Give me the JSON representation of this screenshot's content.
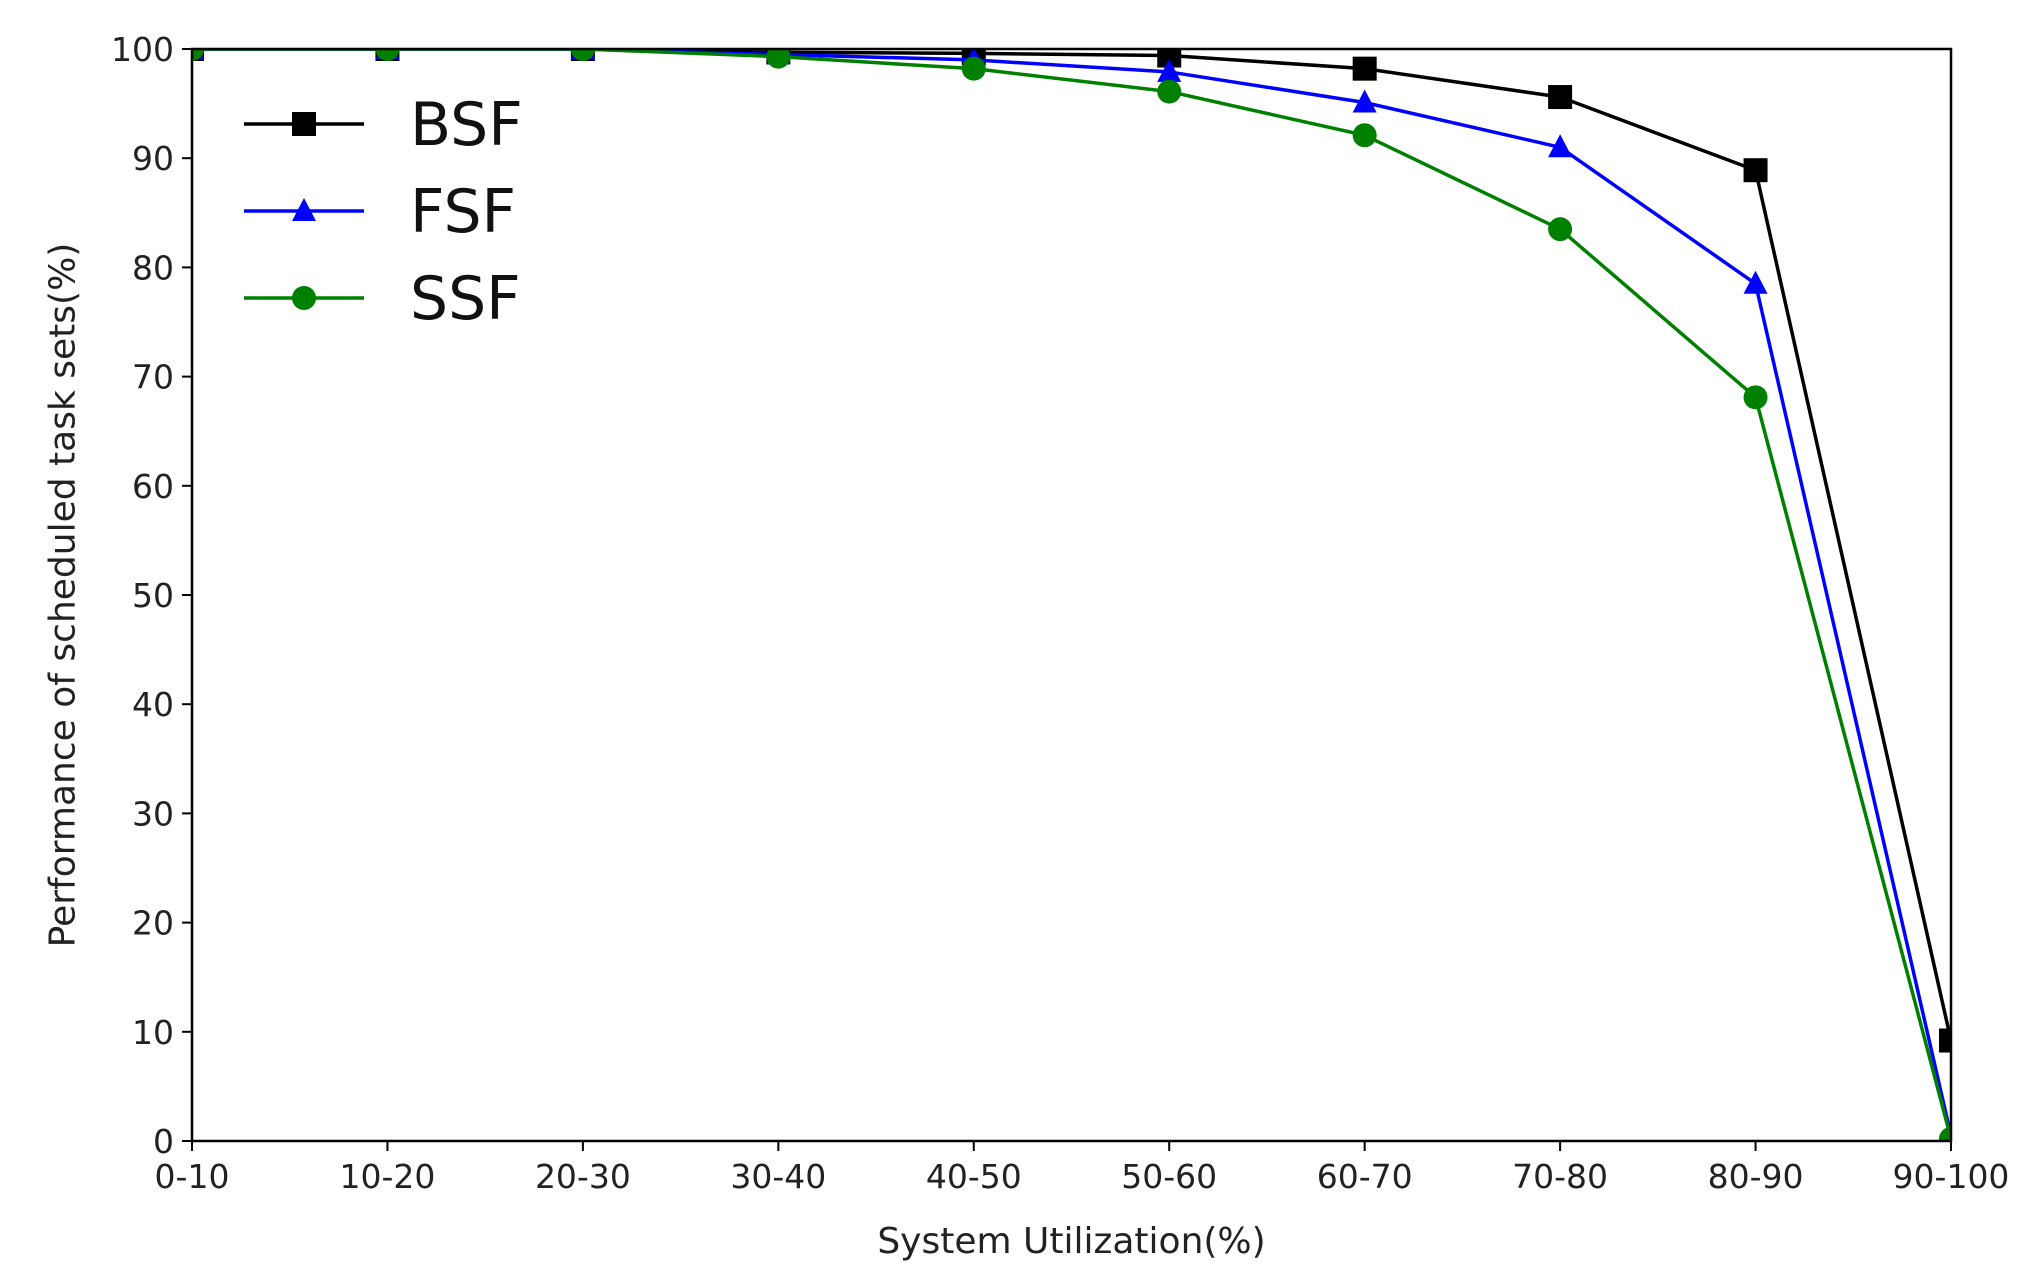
{
  "chart_data": {
    "type": "line",
    "title": "",
    "xlabel": "System Utilization(%)",
    "ylabel": "Performance of scheduled task sets(%)",
    "categories": [
      "0-10",
      "10-20",
      "20-30",
      "30-40",
      "40-50",
      "50-60",
      "60-70",
      "70-80",
      "80-90",
      "90-100"
    ],
    "ylim": [
      0,
      100
    ],
    "yticks": [
      0,
      10,
      20,
      30,
      40,
      50,
      60,
      70,
      80,
      90,
      100
    ],
    "grid": false,
    "legend_position": "top-left",
    "series": [
      {
        "name": "BSF",
        "color": "#000000",
        "marker": "square",
        "values": [
          100,
          100,
          100,
          99.7,
          99.6,
          99.4,
          98.2,
          95.6,
          88.9,
          9.2
        ]
      },
      {
        "name": "FSF",
        "color": "#0000ff",
        "marker": "triangle",
        "values": [
          100,
          100,
          100,
          99.5,
          99.0,
          97.9,
          95.1,
          91.0,
          78.5,
          0.5
        ]
      },
      {
        "name": "SSF",
        "color": "#008000",
        "marker": "circle",
        "values": [
          100,
          100,
          100,
          99.3,
          98.2,
          96.1,
          92.1,
          83.5,
          68.1,
          0.2
        ]
      }
    ]
  }
}
